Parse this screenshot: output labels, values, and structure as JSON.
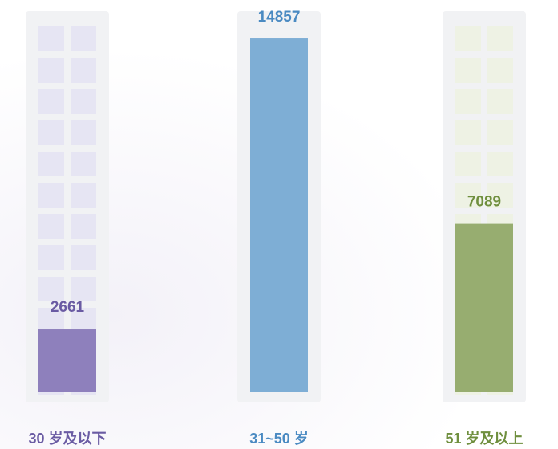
{
  "chart_data": {
    "type": "bar",
    "categories": [
      "30 岁及以下",
      "31~50 岁",
      "51 岁及以上"
    ],
    "values": [
      2661,
      14857,
      7089
    ],
    "colors": [
      "#8e80bc",
      "#7eaed5",
      "#97ad70"
    ],
    "label_colors": [
      "#6a5ba3",
      "#4a8ac2",
      "#6f8f3e"
    ],
    "tile_colors": [
      "#e6e5f3",
      null,
      "#eef2e4"
    ],
    "ylim": [
      0,
      15000
    ]
  }
}
